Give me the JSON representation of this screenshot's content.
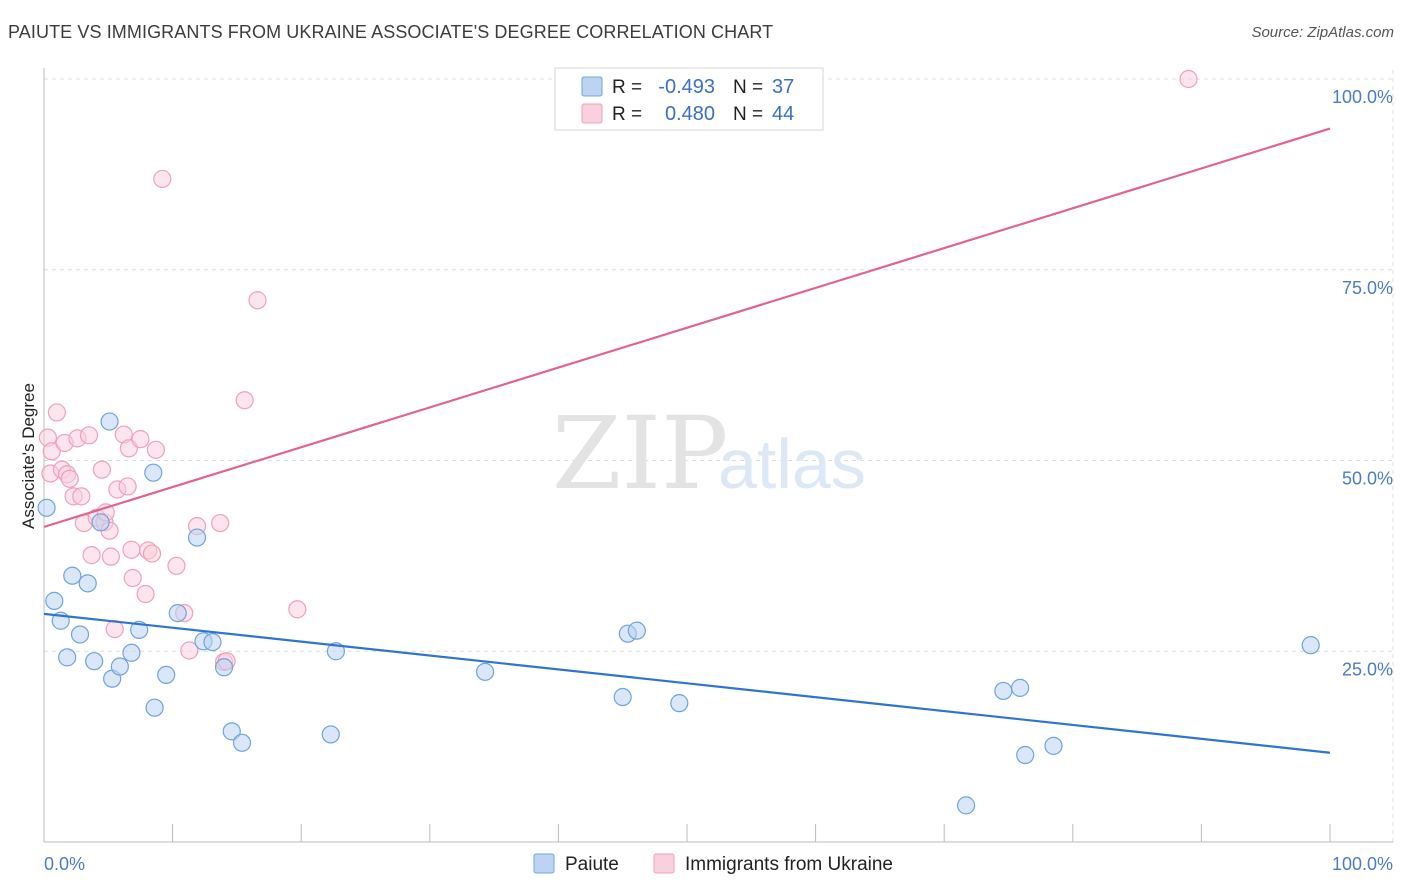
{
  "header": {
    "title": "PAIUTE VS IMMIGRANTS FROM UKRAINE ASSOCIATE'S DEGREE CORRELATION CHART",
    "source": "Source: ZipAtlas.com"
  },
  "watermark": {
    "zip": "ZIP",
    "atlas": "atlas"
  },
  "chart_data": {
    "type": "scatter",
    "title": "PAIUTE VS IMMIGRANTS FROM UKRAINE ASSOCIATE'S DEGREE CORRELATION CHART",
    "xlabel": "",
    "ylabel": "Associate's Degree",
    "xlim": [
      0,
      100
    ],
    "ylim": [
      0,
      100
    ],
    "x_tick_labels": [
      "0.0%",
      "100.0%"
    ],
    "y_ticks": [
      25,
      50,
      75,
      100
    ],
    "y_tick_labels": [
      "25.0%",
      "50.0%",
      "75.0%",
      "100.0%"
    ],
    "grid": true,
    "legend_position": "top-center",
    "series": [
      {
        "name": "Paiute",
        "color": "#6fa3e0",
        "fill": "#bcd4f2",
        "line_color": "#2f74d0",
        "R": "-0.493",
        "N": "37",
        "trend": {
          "x": [
            0,
            100
          ],
          "y": [
            29.9,
            11.7
          ]
        },
        "points": [
          [
            0.2,
            43.8
          ],
          [
            0.8,
            31.6
          ],
          [
            1.3,
            29.0
          ],
          [
            1.8,
            24.2
          ],
          [
            2.2,
            34.9
          ],
          [
            2.8,
            27.2
          ],
          [
            3.4,
            33.9
          ],
          [
            3.9,
            23.7
          ],
          [
            4.4,
            41.9
          ],
          [
            5.1,
            55.1
          ],
          [
            5.3,
            21.4
          ],
          [
            5.9,
            23.0
          ],
          [
            6.8,
            24.8
          ],
          [
            7.4,
            27.8
          ],
          [
            8.5,
            48.4
          ],
          [
            8.6,
            17.6
          ],
          [
            9.5,
            21.9
          ],
          [
            10.4,
            30.0
          ],
          [
            11.9,
            39.9
          ],
          [
            12.4,
            26.3
          ],
          [
            13.1,
            26.2
          ],
          [
            14.0,
            22.9
          ],
          [
            14.6,
            14.5
          ],
          [
            15.4,
            13.0
          ],
          [
            22.3,
            14.1
          ],
          [
            22.7,
            25.0
          ],
          [
            34.3,
            22.3
          ],
          [
            45.0,
            19.0
          ],
          [
            45.4,
            27.3
          ],
          [
            46.1,
            27.7
          ],
          [
            49.4,
            18.2
          ],
          [
            74.6,
            19.8
          ],
          [
            75.9,
            20.2
          ],
          [
            76.3,
            11.4
          ],
          [
            78.5,
            12.6
          ],
          [
            71.7,
            4.8
          ],
          [
            98.5,
            25.8
          ]
        ]
      },
      {
        "name": "Immigrants from Ukraine",
        "color": "#f0a0bb",
        "fill": "#f9d0dd",
        "line_color": "#e0648e",
        "R": "0.480",
        "N": "44",
        "trend": {
          "x": [
            0,
            100
          ],
          "y": [
            41.3,
            93.5
          ]
        },
        "points": [
          [
            0.3,
            53.0
          ],
          [
            0.5,
            48.3
          ],
          [
            0.6,
            51.2
          ],
          [
            1.0,
            56.3
          ],
          [
            1.4,
            48.8
          ],
          [
            1.6,
            52.3
          ],
          [
            1.8,
            48.2
          ],
          [
            2.0,
            47.6
          ],
          [
            2.3,
            45.3
          ],
          [
            2.6,
            52.9
          ],
          [
            2.9,
            45.3
          ],
          [
            3.1,
            41.8
          ],
          [
            3.5,
            53.3
          ],
          [
            3.7,
            37.6
          ],
          [
            4.1,
            42.5
          ],
          [
            4.5,
            48.8
          ],
          [
            4.7,
            41.9
          ],
          [
            4.8,
            43.2
          ],
          [
            5.1,
            40.8
          ],
          [
            5.2,
            37.4
          ],
          [
            5.5,
            27.9
          ],
          [
            5.7,
            46.2
          ],
          [
            6.2,
            53.4
          ],
          [
            6.5,
            46.6
          ],
          [
            6.6,
            51.6
          ],
          [
            6.8,
            38.3
          ],
          [
            6.9,
            34.6
          ],
          [
            7.5,
            52.8
          ],
          [
            7.9,
            32.5
          ],
          [
            8.1,
            38.2
          ],
          [
            8.4,
            37.8
          ],
          [
            8.7,
            51.4
          ],
          [
            9.2,
            86.9
          ],
          [
            10.3,
            36.2
          ],
          [
            10.9,
            30.0
          ],
          [
            11.3,
            25.1
          ],
          [
            11.9,
            41.4
          ],
          [
            13.7,
            41.8
          ],
          [
            14.0,
            23.6
          ],
          [
            14.2,
            23.7
          ],
          [
            15.6,
            57.9
          ],
          [
            16.6,
            71.0
          ],
          [
            19.7,
            30.5
          ],
          [
            89.0,
            100.0
          ]
        ]
      }
    ]
  },
  "legend": {
    "r_label": "R =",
    "n_label": "N =",
    "items": [
      {
        "name": "Paiute",
        "r": "-0.493",
        "n": "37"
      },
      {
        "name": "Immigrants from Ukraine",
        "r": "0.480",
        "n": "44"
      }
    ]
  }
}
